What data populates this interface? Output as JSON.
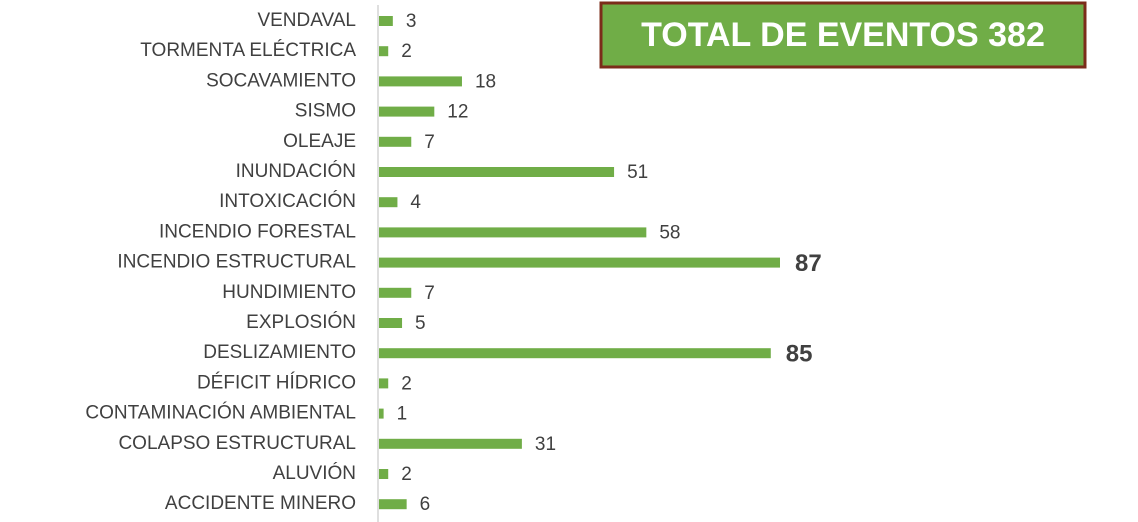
{
  "chart_data": {
    "type": "bar",
    "orientation": "horizontal",
    "title": "TOTAL DE EVENTOS 382",
    "categories": [
      "VENDAVAL",
      "TORMENTA ELÉCTRICA",
      "SOCAVAMIENTO",
      "SISMO",
      "OLEAJE",
      "INUNDACIÓN",
      "INTOXICACIÓN",
      "INCENDIO FORESTAL",
      "INCENDIO ESTRUCTURAL",
      "HUNDIMIENTO",
      "EXPLOSIÓN",
      "DESLIZAMIENTO",
      "DÉFICIT HÍDRICO",
      "CONTAMINACIÓN AMBIENTAL",
      "COLAPSO ESTRUCTURAL",
      "ALUVIÓN",
      "ACCIDENTE MINERO"
    ],
    "values": [
      3,
      2,
      18,
      12,
      7,
      51,
      4,
      58,
      87,
      7,
      5,
      85,
      2,
      1,
      31,
      2,
      6
    ],
    "color": "#70ad47"
  }
}
